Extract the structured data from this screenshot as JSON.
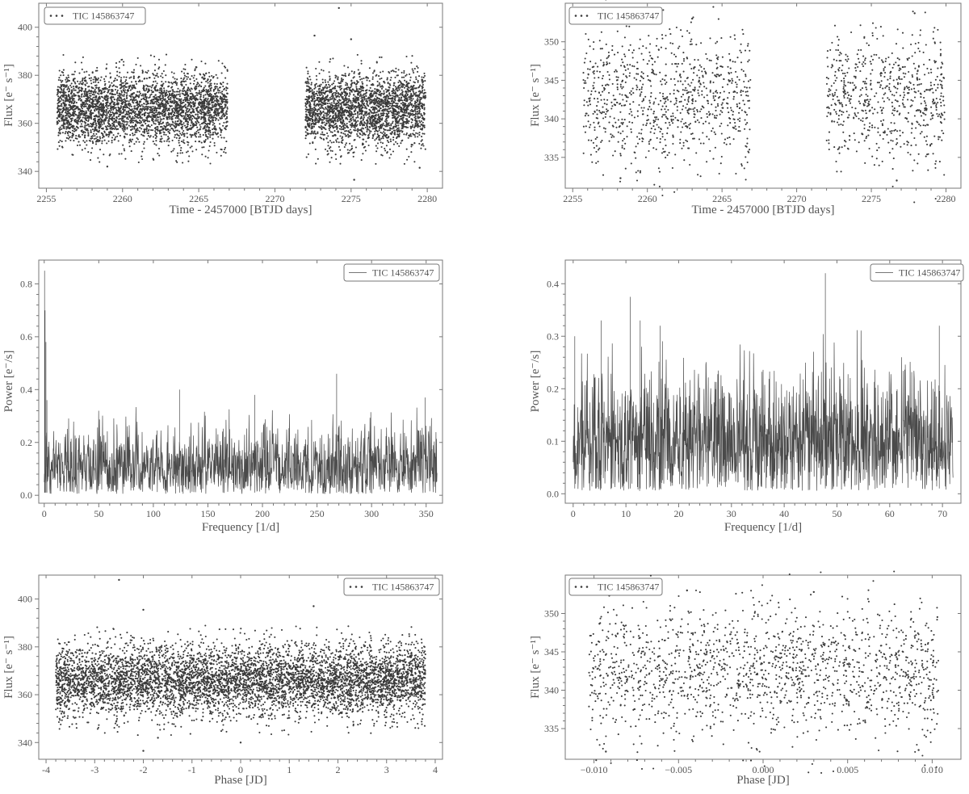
{
  "figure": {
    "legend_label": "TIC 145863747"
  },
  "chart_data": [
    {
      "id": "lc-full",
      "type": "scatter",
      "xlabel": "Time - 2457000 [BTJD days]",
      "ylabel": "Flux [e⁻ s⁻¹]",
      "xlim": [
        2254.5,
        2281.0
      ],
      "ylim": [
        333,
        410
      ],
      "xticks": [
        2255,
        2260,
        2265,
        2270,
        2275,
        2280
      ],
      "yticks": [
        340,
        360,
        380,
        400
      ],
      "legend_position": "top-left",
      "series": [
        {
          "name": "TIC 145863747",
          "segments": [
            [
              2255.7,
              2266.9
            ],
            [
              2272.0,
              2279.9
            ]
          ],
          "mean": 366,
          "scatter": 7.5,
          "outliers": [
            [
              2274.2,
              408
            ],
            [
              2272.6,
              396.5
            ],
            [
              2275.0,
              395.0
            ],
            [
              2259.0,
              342.0
            ],
            [
              2275.2,
              336.5
            ],
            [
              2279.5,
              341.5
            ]
          ]
        }
      ]
    },
    {
      "id": "lc-binned",
      "type": "scatter",
      "xlabel": "Time - 2457000 [BTJD days]",
      "ylabel": "Flux [e⁻ s⁻¹]",
      "xlim": [
        2254.5,
        2281.0
      ],
      "ylim": [
        331,
        355
      ],
      "xticks": [
        2255,
        2260,
        2265,
        2270,
        2275,
        2280
      ],
      "yticks": [
        335,
        340,
        345,
        350
      ],
      "legend_position": "top-left",
      "series": [
        {
          "name": "TIC 145863747",
          "segments": [
            [
              2255.7,
              2266.9
            ],
            [
              2272.0,
              2279.9
            ]
          ],
          "mean": 342.5,
          "scatter": 4.3,
          "outliers": [
            [
              2277.9,
              353.7
            ],
            [
              2263.0,
              353.0
            ],
            [
              2258.2,
              332.3
            ],
            [
              2276.7,
              332.0
            ]
          ]
        }
      ]
    },
    {
      "id": "pg-full",
      "type": "line",
      "xlabel": "Frequency [1/d]",
      "ylabel": "Power [e⁻/s]",
      "xlim": [
        -5,
        365
      ],
      "ylim": [
        -0.03,
        0.89
      ],
      "xticks": [
        0,
        50,
        100,
        150,
        200,
        250,
        300,
        350
      ],
      "yticks": [
        0.0,
        0.2,
        0.4,
        0.6,
        0.8
      ],
      "legend_position": "top-right",
      "series": [
        {
          "name": "TIC 145863747",
          "fmax": 360,
          "baseline": 0.1,
          "noise": 0.14,
          "peaks": [
            [
              0.3,
              0.85
            ],
            [
              0.8,
              0.7
            ],
            [
              1.6,
              0.58
            ],
            [
              2.5,
              0.36
            ],
            [
              268,
              0.46
            ],
            [
              124,
              0.4
            ],
            [
              349,
              0.37
            ],
            [
              193,
              0.38
            ]
          ]
        }
      ]
    },
    {
      "id": "pg-binned",
      "type": "line",
      "xlabel": "Frequency [1/d]",
      "ylabel": "Power [e⁻/s]",
      "xlim": [
        -1.5,
        73.5
      ],
      "ylim": [
        -0.018,
        0.445
      ],
      "xticks": [
        0,
        10,
        20,
        30,
        40,
        50,
        60,
        70
      ],
      "yticks": [
        0.0,
        0.1,
        0.2,
        0.3,
        0.4
      ],
      "legend_position": "top-right",
      "series": [
        {
          "name": "TIC 145863747",
          "fmax": 72,
          "baseline": 0.1,
          "noise": 0.12,
          "peaks": [
            [
              47.8,
              0.42
            ],
            [
              10.8,
              0.375
            ],
            [
              5.3,
              0.33
            ],
            [
              12.7,
              0.33
            ],
            [
              69.4,
              0.32
            ],
            [
              16.5,
              0.32
            ],
            [
              0.3,
              0.3
            ]
          ]
        }
      ]
    },
    {
      "id": "fold-full",
      "type": "scatter",
      "xlabel": "Phase [JD]",
      "ylabel": "Flux [e⁻ s⁻¹]",
      "xlim": [
        -4.15,
        4.15
      ],
      "ylim": [
        333,
        410
      ],
      "xticks": [
        -4,
        -3,
        -2,
        -1,
        0,
        1,
        2,
        3,
        4
      ],
      "yticks": [
        340,
        360,
        380,
        400
      ],
      "legend_position": "top-right",
      "series": [
        {
          "name": "TIC 145863747",
          "segments": [
            [
              -3.8,
              3.8
            ]
          ],
          "mean": 366,
          "scatter": 7.5,
          "outliers": [
            [
              -2.5,
              408
            ],
            [
              -2.0,
              395.5
            ],
            [
              1.5,
              397
            ],
            [
              -1.7,
              342
            ],
            [
              -2.0,
              336.5
            ],
            [
              0.0,
              340
            ]
          ]
        }
      ]
    },
    {
      "id": "fold-binned",
      "type": "scatter",
      "xlabel": "Phase [JD]",
      "ylabel": "Flux [e⁻ s⁻¹]",
      "xlim": [
        -0.0117,
        0.0117
      ],
      "ylim": [
        331,
        355
      ],
      "xticks": [
        -0.01,
        -0.005,
        0.0,
        0.005,
        0.01
      ],
      "xtick_labels": [
        "−0.010",
        "−0.005",
        "0.000",
        "0.005",
        "0.010"
      ],
      "yticks": [
        335,
        340,
        345,
        350
      ],
      "legend_position": "top-left",
      "series": [
        {
          "name": "TIC 145863747",
          "segments": [
            [
              -0.0103,
              0.0104
            ]
          ],
          "mean": 342.5,
          "scatter": 4.3,
          "outliers": [
            [
              -0.0045,
              353
            ],
            [
              0.003,
              352.8
            ],
            [
              -0.0093,
              332.0
            ],
            [
              0.0092,
              332.2
            ]
          ]
        }
      ]
    }
  ]
}
